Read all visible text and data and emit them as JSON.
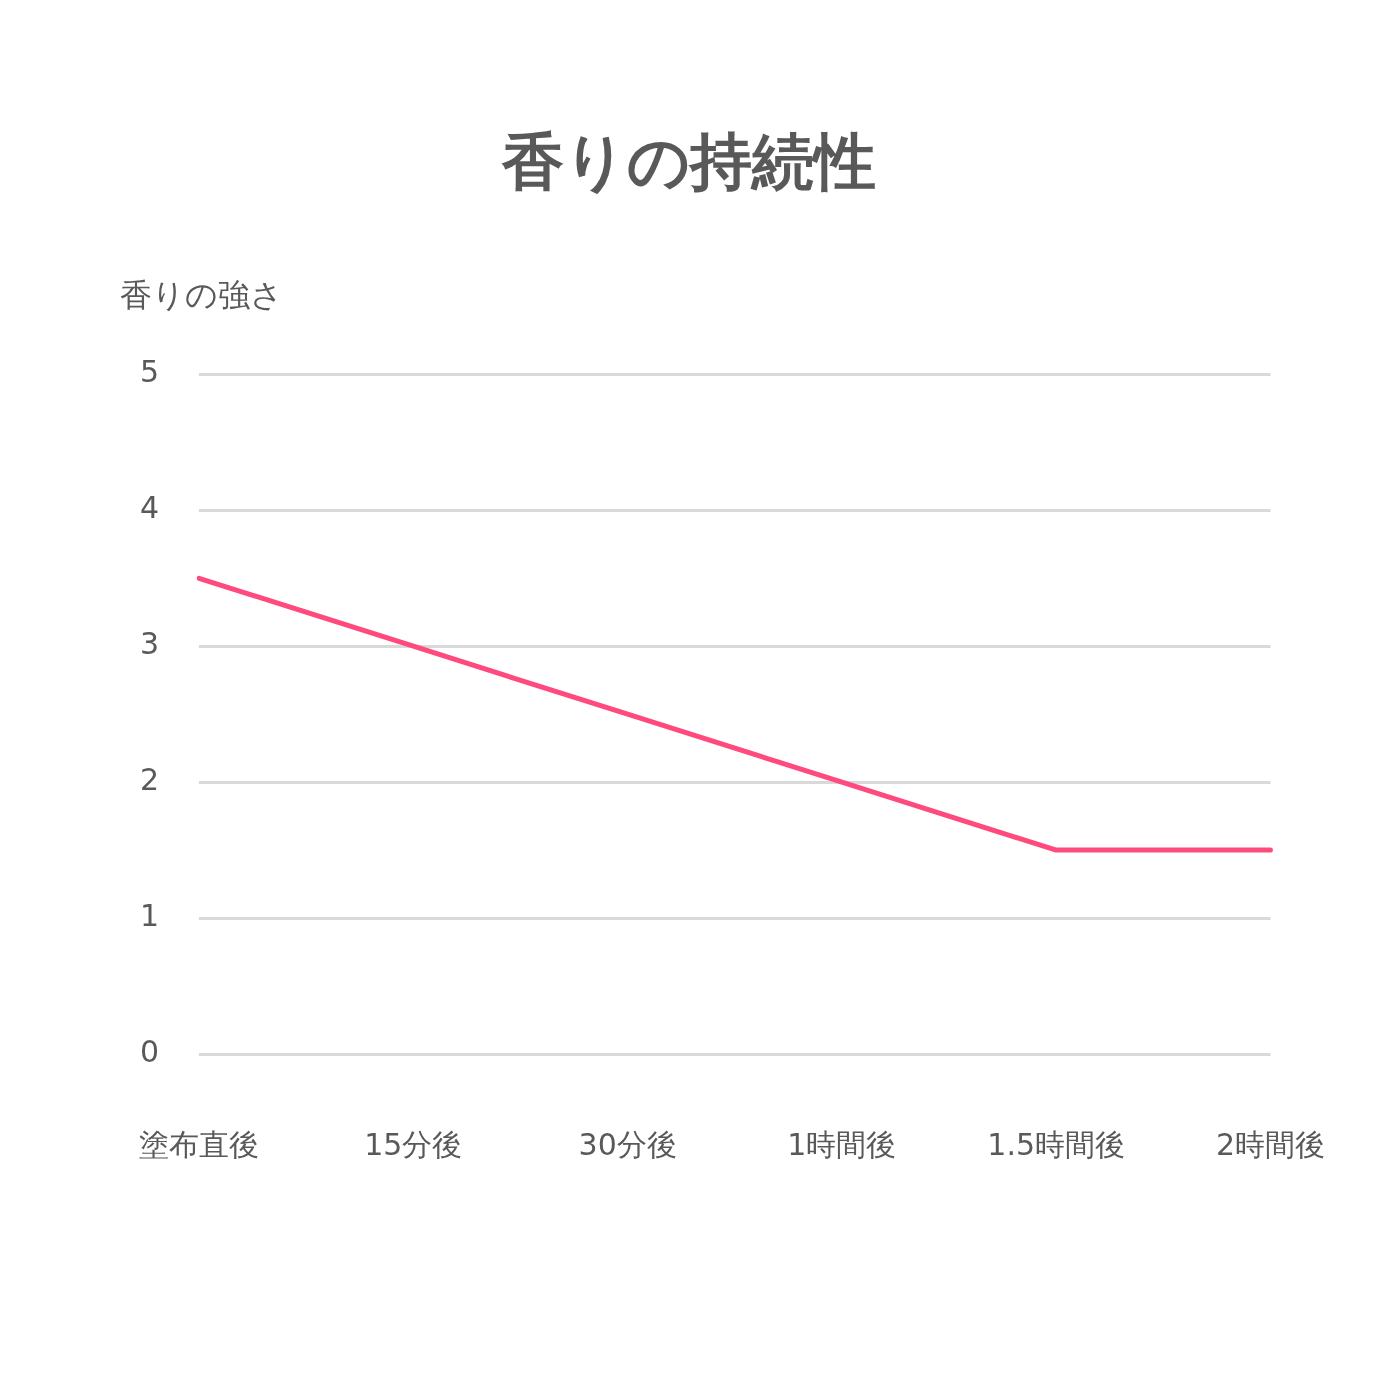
{
  "chart_data": {
    "type": "line",
    "title": "香りの持続性",
    "ylabel": "香りの強さ",
    "categories": [
      "塗布直後",
      "15分後",
      "30分後",
      "1時間後",
      "1.5時間後",
      "2時間後"
    ],
    "series": [
      {
        "color": "#ff4a7d",
        "values": [
          3.5,
          3.0,
          2.5,
          2.0,
          1.5,
          1.5
        ]
      }
    ],
    "ylim": [
      0,
      5
    ],
    "yticks": [
      0,
      1,
      2,
      3,
      4,
      5
    ],
    "grid": "y",
    "legend": false,
    "marker": "none",
    "line_style": "solid"
  }
}
